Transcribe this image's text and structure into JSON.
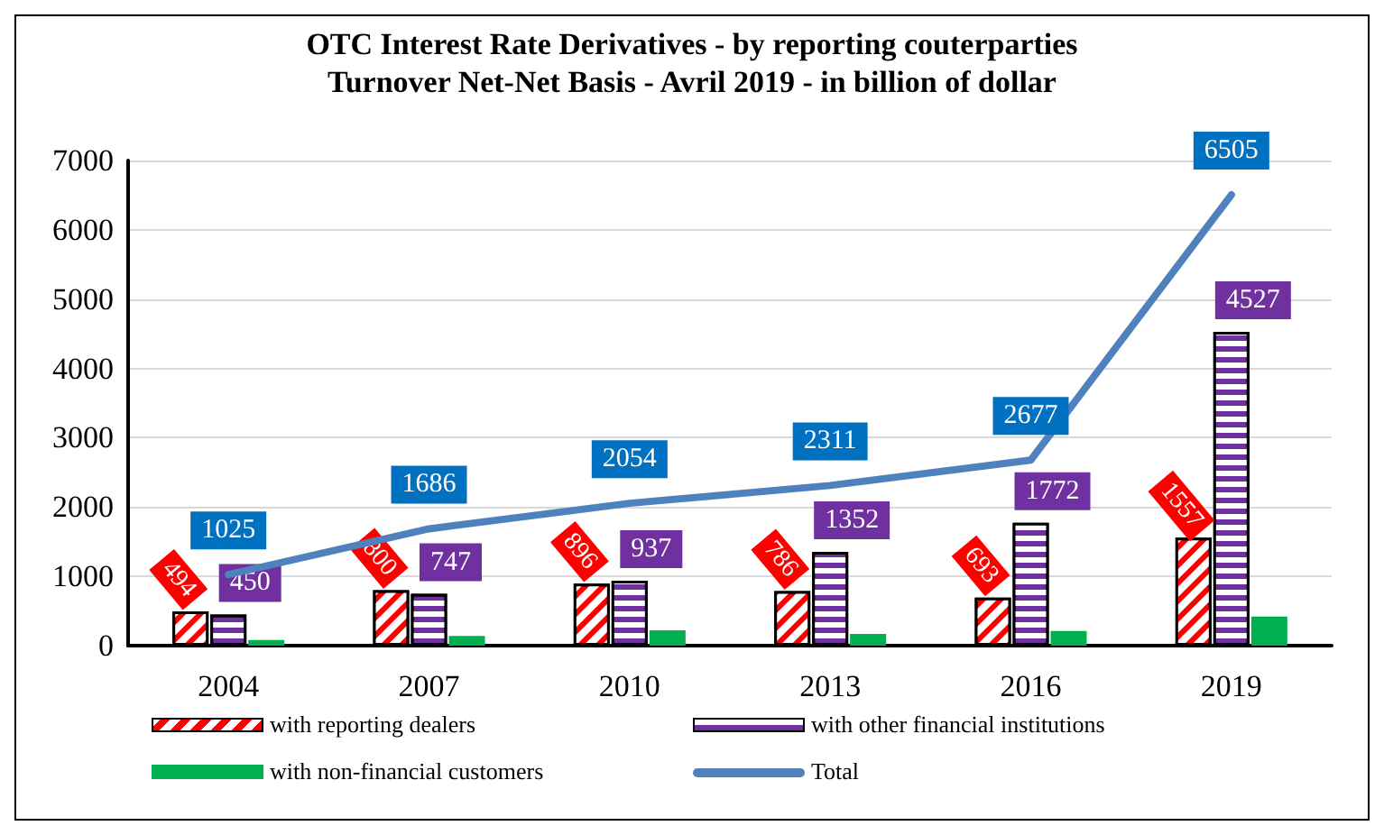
{
  "chart_data": {
    "type": "bar",
    "title": "OTC Interest Rate Derivatives - by reporting couterparties",
    "subtitle": "Turnover Net-Net Basis - Avril 2019 - in billion of dollar",
    "categories": [
      "2004",
      "2007",
      "2010",
      "2013",
      "2016",
      "2019"
    ],
    "series": [
      {
        "name": "with reporting dealers",
        "color": "#ff0000",
        "values": [
          494,
          800,
          896,
          786,
          693,
          1557
        ],
        "value_labels": [
          "494",
          "800",
          "896",
          "786",
          "693",
          "1557"
        ]
      },
      {
        "name": "with other financial institutions",
        "color": "#7030a0",
        "values": [
          450,
          747,
          937,
          1352,
          1772,
          4527
        ],
        "value_labels": [
          "450",
          "747",
          "937",
          "1352",
          "1772",
          "4527"
        ]
      },
      {
        "name": "with non-financial customers",
        "color": "#00b050",
        "values": [
          80,
          140,
          220,
          170,
          210,
          420
        ]
      },
      {
        "name": "Total",
        "type": "line",
        "color": "#4f81bd",
        "values": [
          1025,
          1686,
          2054,
          2311,
          2677,
          6505
        ],
        "value_labels": [
          "1025",
          "1686",
          "2054",
          "2311",
          "2677",
          "6505"
        ]
      }
    ],
    "ylim": [
      0,
      7000
    ],
    "yticks": [
      0,
      1000,
      2000,
      3000,
      4000,
      5000,
      6000,
      7000
    ],
    "grid": "y",
    "legend": "bottom",
    "marker": "none"
  }
}
